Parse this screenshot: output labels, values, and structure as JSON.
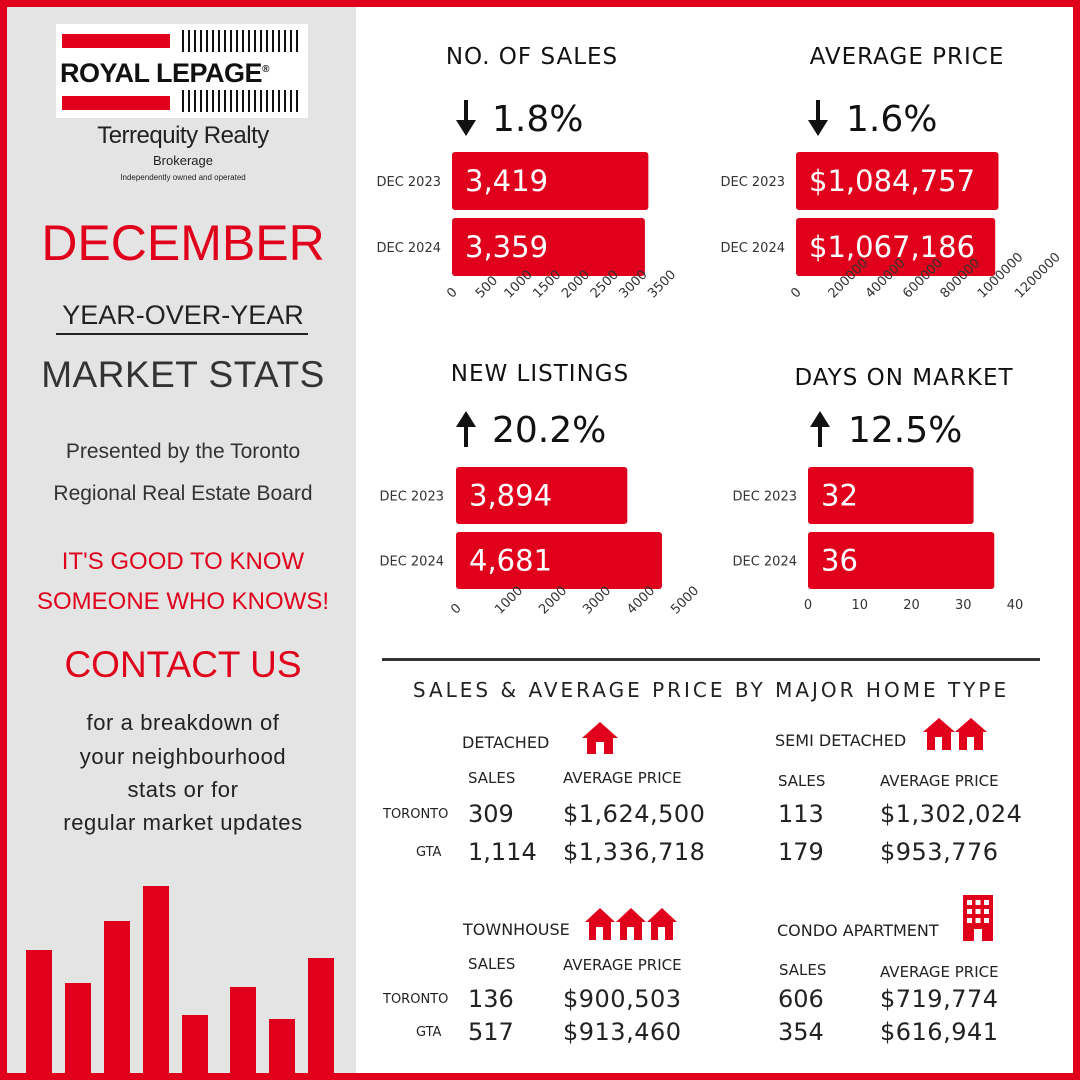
{
  "brand": {
    "logo_text": "ROYAL LEPAGE",
    "name": "Terrequity Realty",
    "subtitle": "Brokerage",
    "tagline_small": "Independently owned and operated",
    "accent_color": "#e0001b"
  },
  "left": {
    "month": "DECEMBER",
    "yoy": "YEAR-OVER-YEAR",
    "market_stats": "MARKET STATS",
    "presented_line1": "Presented by the Toronto",
    "presented_line2": "Regional Real Estate Board",
    "slogan_line1": "IT'S GOOD TO KNOW",
    "slogan_line2": "SOMEONE WHO KNOWS!",
    "contact": "CONTACT US",
    "body_line1": "for a breakdown of",
    "body_line2": "your neighbourhood",
    "body_line3": "stats or for",
    "body_line4": "regular market updates"
  },
  "chart_data": [
    {
      "type": "bar",
      "orientation": "horizontal",
      "title": "NO. OF SALES",
      "change_direction": "down",
      "change_text": "1.8%",
      "categories": [
        "DEC 2023",
        "DEC 2024"
      ],
      "values": [
        3419,
        3359
      ],
      "value_labels": [
        "3,419",
        "3,359"
      ],
      "ticks": [
        "0",
        "500",
        "1000",
        "1500",
        "2000",
        "2500",
        "3000",
        "3500"
      ],
      "xlim": [
        0,
        3500
      ]
    },
    {
      "type": "bar",
      "orientation": "horizontal",
      "title": "AVERAGE PRICE",
      "change_direction": "down",
      "change_text": "1.6%",
      "categories": [
        "DEC 2023",
        "DEC 2024"
      ],
      "values": [
        1084757,
        1067186
      ],
      "value_labels": [
        "$1,084,757",
        "$1,067,186"
      ],
      "ticks": [
        "0",
        "200000",
        "400000",
        "600000",
        "800000",
        "1000000",
        "1200000"
      ],
      "xlim": [
        0,
        1200000
      ]
    },
    {
      "type": "bar",
      "orientation": "horizontal",
      "title": "NEW LISTINGS",
      "change_direction": "up",
      "change_text": "20.2%",
      "categories": [
        "DEC 2023",
        "DEC 2024"
      ],
      "values": [
        3894,
        4681
      ],
      "value_labels": [
        "3,894",
        "4,681"
      ],
      "ticks": [
        "0",
        "1000",
        "2000",
        "3000",
        "4000",
        "5000"
      ],
      "xlim": [
        0,
        5000
      ]
    },
    {
      "type": "bar",
      "orientation": "horizontal",
      "title": "DAYS ON MARKET",
      "change_direction": "up",
      "change_text": "12.5%",
      "categories": [
        "DEC 2023",
        "DEC 2024"
      ],
      "values": [
        32,
        36
      ],
      "value_labels": [
        "32",
        "36"
      ],
      "ticks": [
        "0",
        "10",
        "20",
        "30",
        "40"
      ],
      "xlim": [
        0,
        40
      ]
    }
  ],
  "home_types": {
    "title": "SALES & AVERAGE PRICE BY MAJOR HOME TYPE",
    "row_toronto": "TORONTO",
    "row_gta": "GTA",
    "sales_header": "SALES",
    "price_header": "AVERAGE PRICE",
    "detached": {
      "name": "DETACHED",
      "toronto_sales": "309",
      "toronto_price": "$1,624,500",
      "gta_sales": "1,114",
      "gta_price": "$1,336,718",
      "icon": "house-icon"
    },
    "semi": {
      "name": "SEMI DETACHED",
      "toronto_sales": "113",
      "toronto_price": "$1,302,024",
      "gta_sales": "179",
      "gta_price": "$953,776",
      "icon": "semi-house-icon"
    },
    "townhouse": {
      "name": "TOWNHOUSE",
      "toronto_sales": "136",
      "toronto_price": "$900,503",
      "gta_sales": "517",
      "gta_price": "$913,460",
      "icon": "townhouse-icon"
    },
    "condo": {
      "name": "CONDO APARTMENT",
      "toronto_sales": "606",
      "toronto_price": "$719,774",
      "gta_sales": "354",
      "gta_price": "$616,941",
      "icon": "apartment-icon"
    }
  }
}
